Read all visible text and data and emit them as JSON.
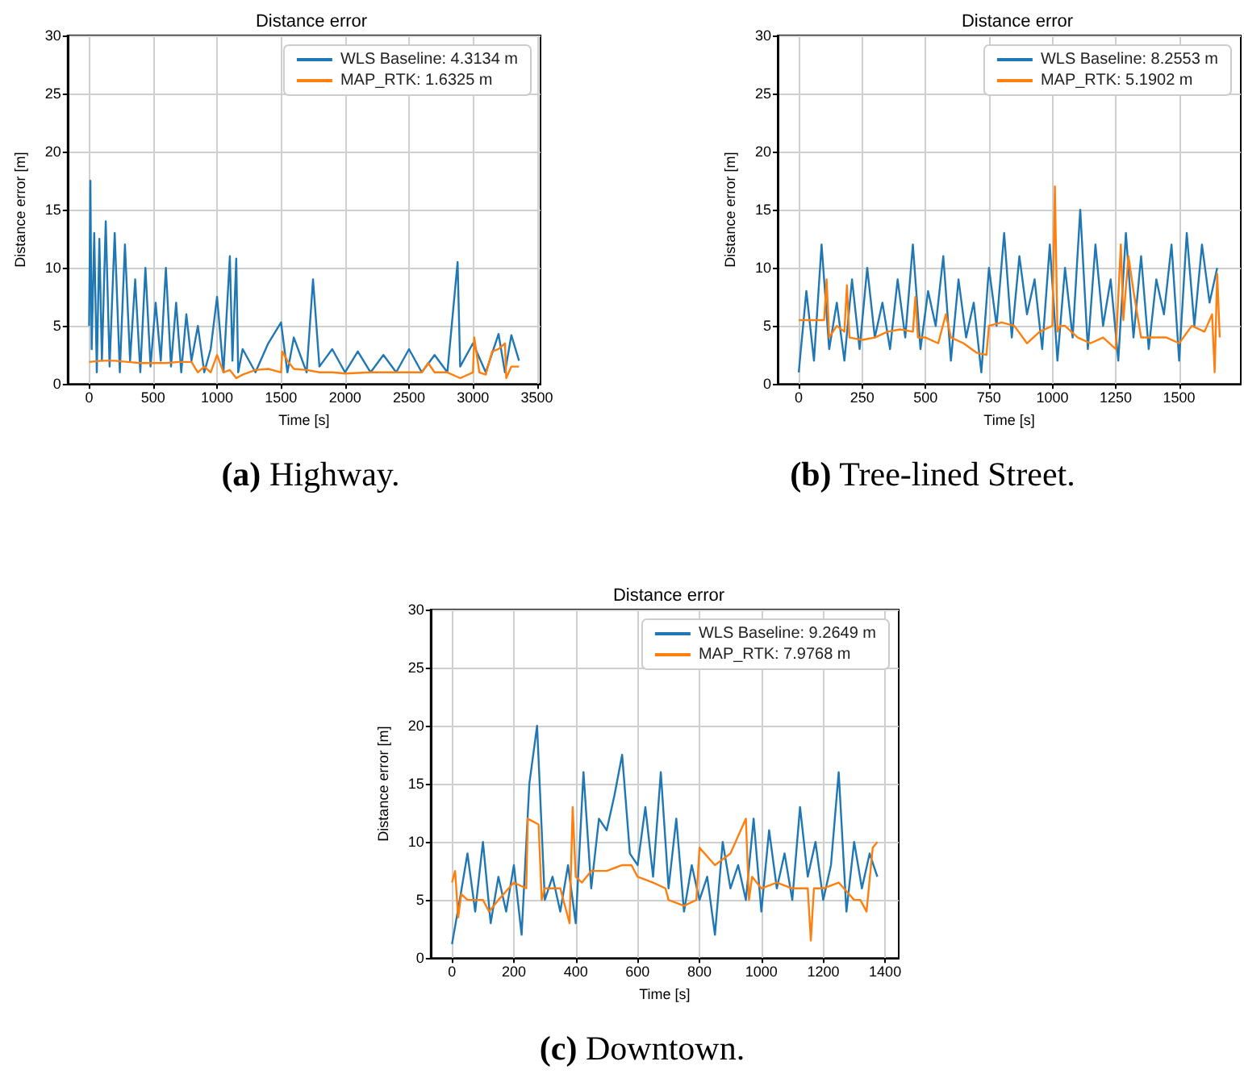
{
  "chart_data": [
    {
      "type": "line",
      "title": "Distance error",
      "xlabel": "Time [s]",
      "ylabel": "Distance error [m]",
      "annotations": [
        "(a) Highway."
      ],
      "xlim": [
        -168,
        3528
      ],
      "xticks": [
        0,
        500,
        1000,
        1500,
        2000,
        2500,
        3000,
        3500
      ],
      "ylim": [
        0,
        30
      ],
      "yticks": [
        0,
        5,
        10,
        15,
        20,
        25,
        30
      ],
      "grid": true,
      "legend": "top right",
      "marker": "none",
      "line_style": "solid",
      "series": [
        {
          "name": "WLS Baseline: 4.3134 m",
          "color": "#1f77b4",
          "x": [
            0,
            10,
            20,
            40,
            60,
            80,
            100,
            130,
            160,
            200,
            240,
            280,
            320,
            360,
            400,
            440,
            480,
            520,
            560,
            600,
            640,
            680,
            720,
            760,
            800,
            850,
            900,
            950,
            1000,
            1050,
            1100,
            1120,
            1150,
            1165,
            1200,
            1300,
            1400,
            1500,
            1550,
            1600,
            1700,
            1750,
            1800,
            1900,
            2000,
            2100,
            2200,
            2300,
            2400,
            2500,
            2600,
            2700,
            2800,
            2880,
            2900,
            3000,
            3100,
            3200,
            3250,
            3300,
            3360
          ],
          "values": [
            5,
            17.5,
            3,
            13,
            1,
            12.5,
            2,
            14,
            1.5,
            13,
            1,
            12,
            2,
            9,
            1,
            10,
            1.5,
            7,
            2,
            10,
            1.5,
            7,
            1,
            6,
            2,
            5,
            1,
            3,
            7.5,
            1,
            11,
            2,
            10.8,
            1,
            3,
            1,
            3.5,
            5.3,
            1,
            4,
            1,
            9,
            1.5,
            3,
            1,
            2.8,
            1,
            2.5,
            1,
            3,
            1,
            2.5,
            1,
            10.5,
            1.5,
            3.5,
            1,
            4.3,
            1,
            4.2,
            2
          ]
        },
        {
          "name": "MAP_RTK: 1.6325 m",
          "color": "#ff7f0e",
          "x": [
            0,
            100,
            200,
            300,
            400,
            500,
            600,
            700,
            800,
            850,
            900,
            950,
            1000,
            1050,
            1100,
            1150,
            1200,
            1300,
            1400,
            1500,
            1510,
            1550,
            1600,
            1700,
            1800,
            1900,
            2000,
            2200,
            2400,
            2600,
            2650,
            2700,
            2800,
            2900,
            3000,
            3010,
            3050,
            3100,
            3150,
            3200,
            3250,
            3260,
            3300,
            3360
          ],
          "values": [
            1.9,
            2,
            2,
            1.9,
            1.8,
            1.8,
            1.8,
            1.9,
            1.9,
            1,
            1.5,
            1,
            2.5,
            1,
            1.2,
            0.5,
            0.8,
            1.2,
            1.3,
            1,
            2.8,
            2,
            1.3,
            1.2,
            1,
            1,
            0.9,
            1,
            1,
            1,
            1.8,
            1,
            1,
            0.5,
            1,
            4,
            1,
            0.8,
            2.8,
            3,
            3.5,
            0.5,
            1.5,
            1.5
          ]
        }
      ]
    },
    {
      "type": "line",
      "title": "Distance error",
      "xlabel": "Time [s]",
      "ylabel": "Distance error [m]",
      "annotations": [
        "(b) Tree-lined Street."
      ],
      "xlim": [
        -83,
        1743
      ],
      "xticks": [
        0,
        250,
        500,
        750,
        1000,
        1250,
        1500
      ],
      "ylim": [
        0,
        30
      ],
      "yticks": [
        0,
        5,
        10,
        15,
        20,
        25,
        30
      ],
      "grid": true,
      "legend": "top right",
      "marker": "none",
      "line_style": "solid",
      "series": [
        {
          "name": "WLS Baseline: 8.2553 m",
          "color": "#1f77b4",
          "x": [
            0,
            30,
            60,
            90,
            120,
            150,
            180,
            210,
            240,
            270,
            300,
            330,
            360,
            390,
            420,
            450,
            480,
            510,
            540,
            570,
            600,
            630,
            660,
            690,
            720,
            750,
            780,
            810,
            840,
            870,
            900,
            930,
            960,
            990,
            1020,
            1050,
            1080,
            1110,
            1140,
            1170,
            1200,
            1230,
            1260,
            1290,
            1320,
            1350,
            1380,
            1410,
            1440,
            1470,
            1500,
            1530,
            1560,
            1590,
            1620,
            1650
          ],
          "values": [
            1,
            8,
            2,
            12,
            3,
            7,
            2,
            9,
            3,
            10,
            4,
            7,
            3,
            9,
            4,
            12,
            3,
            8,
            5,
            11,
            2,
            9,
            4,
            7,
            1,
            10,
            5,
            13,
            4,
            11,
            6,
            9,
            3,
            12,
            2,
            10,
            4,
            15,
            3,
            12,
            5,
            9,
            2,
            13,
            4,
            11,
            3,
            9,
            6,
            12,
            2,
            13,
            5,
            12,
            7,
            10
          ]
        },
        {
          "name": "MAP_RTK: 5.1902 m",
          "color": "#ff7f0e",
          "x": [
            0,
            100,
            110,
            120,
            150,
            180,
            190,
            200,
            250,
            300,
            350,
            400,
            450,
            460,
            470,
            500,
            550,
            580,
            600,
            650,
            700,
            740,
            750,
            800,
            850,
            900,
            950,
            1000,
            1010,
            1020,
            1030,
            1050,
            1100,
            1150,
            1200,
            1250,
            1270,
            1280,
            1300,
            1320,
            1350,
            1400,
            1450,
            1500,
            1550,
            1600,
            1630,
            1640,
            1650,
            1660
          ],
          "values": [
            5.5,
            5.5,
            9,
            4,
            5,
            4.5,
            8.5,
            4,
            3.8,
            4,
            4.5,
            4.7,
            4.5,
            7.5,
            4,
            4,
            3.5,
            6,
            4,
            3.5,
            2.7,
            2.5,
            5,
            5.3,
            5,
            3.5,
            4.5,
            5,
            17,
            4.5,
            5,
            5,
            4,
            3.5,
            4,
            3,
            12,
            5.5,
            11,
            8,
            4,
            4,
            4,
            3.5,
            5,
            4.5,
            6,
            1,
            9.5,
            4
          ]
        }
      ]
    },
    {
      "type": "line",
      "title": "Distance error",
      "xlabel": "Time [s]",
      "ylabel": "Distance error [m]",
      "annotations": [
        "(c) Downtown."
      ],
      "xlim": [
        -69,
        1444
      ],
      "xticks": [
        0,
        200,
        400,
        600,
        800,
        1000,
        1200,
        1400
      ],
      "ylim": [
        0,
        30
      ],
      "yticks": [
        0,
        5,
        10,
        15,
        20,
        25,
        30
      ],
      "grid": true,
      "legend": "top right",
      "marker": "none",
      "line_style": "solid",
      "series": [
        {
          "name": "WLS Baseline: 9.2649 m",
          "color": "#1f77b4",
          "x": [
            0,
            25,
            50,
            75,
            100,
            125,
            150,
            175,
            200,
            225,
            250,
            275,
            300,
            325,
            350,
            375,
            400,
            425,
            450,
            475,
            500,
            525,
            550,
            575,
            600,
            625,
            650,
            675,
            700,
            725,
            750,
            775,
            800,
            825,
            850,
            875,
            900,
            925,
            950,
            975,
            1000,
            1025,
            1050,
            1075,
            1100,
            1125,
            1150,
            1175,
            1200,
            1225,
            1250,
            1275,
            1300,
            1325,
            1350,
            1375
          ],
          "values": [
            1.2,
            5,
            9,
            4,
            10,
            3,
            7,
            4,
            8,
            2,
            15,
            20,
            5,
            7,
            4,
            8,
            3,
            16,
            6,
            12,
            11,
            14,
            17.5,
            9,
            8,
            13,
            7,
            16,
            6,
            12,
            4,
            8,
            5,
            7,
            2,
            10,
            6,
            8,
            5,
            12,
            4,
            11,
            6,
            9,
            5,
            13,
            7,
            10,
            5,
            8,
            16,
            4,
            10,
            6,
            9,
            7
          ]
        },
        {
          "name": "MAP_RTK: 7.9768 m",
          "color": "#ff7f0e",
          "x": [
            0,
            10,
            20,
            30,
            50,
            100,
            120,
            150,
            200,
            240,
            245,
            280,
            290,
            300,
            350,
            380,
            390,
            400,
            420,
            450,
            500,
            550,
            580,
            600,
            650,
            690,
            700,
            750,
            790,
            800,
            850,
            900,
            950,
            960,
            970,
            1000,
            1050,
            1100,
            1150,
            1160,
            1170,
            1200,
            1250,
            1300,
            1320,
            1340,
            1360,
            1375
          ],
          "values": [
            6.5,
            7.5,
            3.5,
            5.5,
            5,
            5,
            4,
            5,
            6.5,
            6,
            12,
            11.5,
            5,
            6,
            6,
            3,
            13,
            7,
            6.5,
            7.5,
            7.5,
            8,
            8,
            7,
            6.5,
            6,
            5,
            4.5,
            5,
            9.5,
            8,
            9,
            12,
            5,
            7,
            6,
            6.5,
            6,
            6,
            1.5,
            6,
            6,
            6.5,
            5,
            5,
            4,
            9.5,
            10
          ]
        }
      ]
    }
  ]
}
